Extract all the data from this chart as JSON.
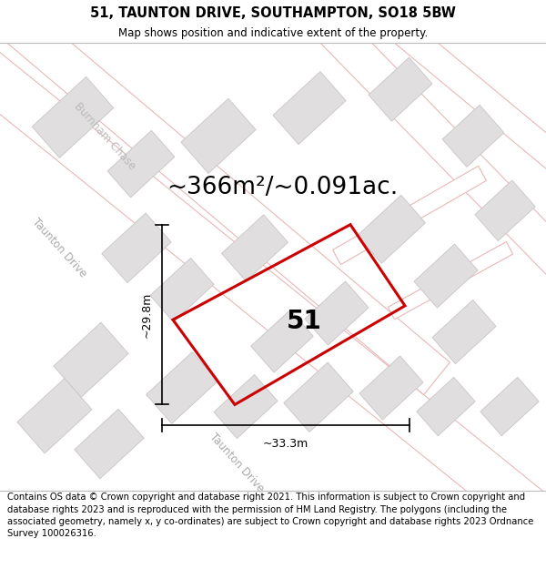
{
  "title": "51, TAUNTON DRIVE, SOUTHAMPTON, SO18 5BW",
  "subtitle": "Map shows position and indicative extent of the property.",
  "area_text": "~366m²/~0.091ac.",
  "label_51": "51",
  "dim_vertical": "~29.8m",
  "dim_horizontal": "~33.3m",
  "footer": "Contains OS data © Crown copyright and database right 2021. This information is subject to Crown copyright and database rights 2023 and is reproduced with the permission of HM Land Registry. The polygons (including the associated geometry, namely x, y co-ordinates) are subject to Crown copyright and database rights 2023 Ordnance Survey 100026316.",
  "map_bg": "#f7f5f5",
  "road_fill": "#ffffff",
  "road_outline": "#e8b8b8",
  "block_color": "#e0dede",
  "block_edge": "#c8c5c5",
  "plot_color": "#cc0000",
  "title_fontsize": 10.5,
  "subtitle_fontsize": 8.5,
  "area_fontsize": 19,
  "label_fontsize": 20,
  "dim_fontsize": 9,
  "footer_fontsize": 7.2,
  "street_fontsize": 8.5
}
